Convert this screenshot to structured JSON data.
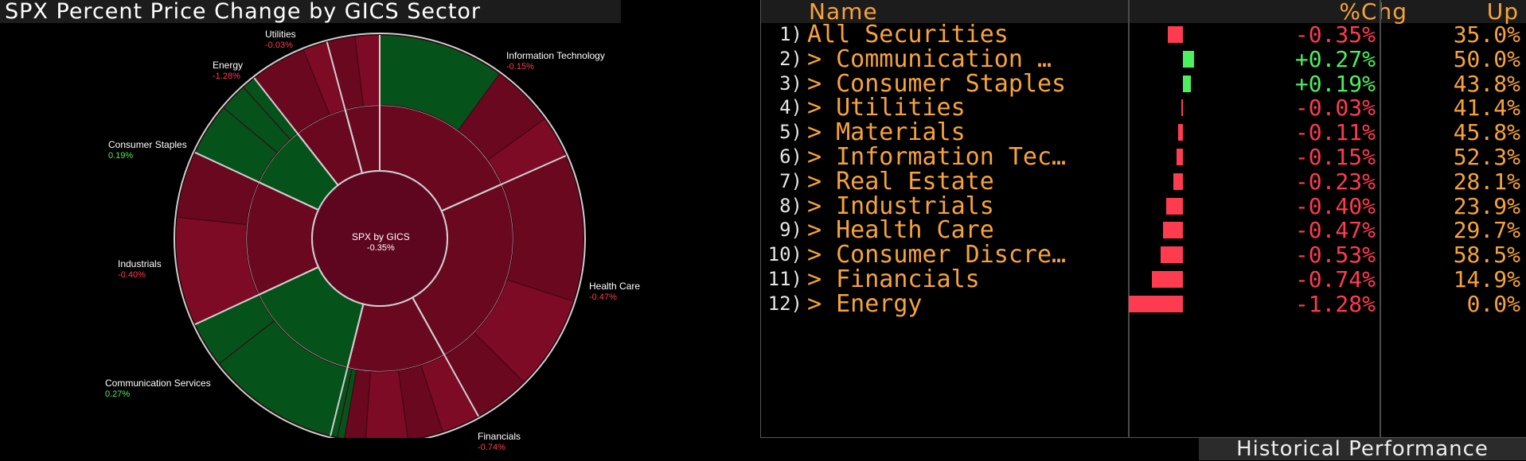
{
  "title": "SPX Percent Price Change by GICS Sector",
  "chart_data": {
    "type": "sunburst",
    "center": {
      "label": "SPX by GICS",
      "value": "-0.35%"
    },
    "sectors": [
      {
        "name": "Information Technology",
        "chg": -0.15,
        "chg_label": "-0.15%"
      },
      {
        "name": "Health Care",
        "chg": -0.47,
        "chg_label": "-0.47%"
      },
      {
        "name": "Financials",
        "chg": -0.74,
        "chg_label": "-0.74%"
      },
      {
        "name": "Communication Services",
        "chg": 0.27,
        "chg_label": "0.27%"
      },
      {
        "name": "Industrials",
        "chg": -0.4,
        "chg_label": "-0.40%"
      },
      {
        "name": "Consumer Staples",
        "chg": 0.19,
        "chg_label": "0.19%"
      },
      {
        "name": "Energy",
        "chg": -1.28,
        "chg_label": "-1.28%"
      },
      {
        "name": "Utilities",
        "chg": -0.03,
        "chg_label": "-0.03%"
      }
    ]
  },
  "table": {
    "headers": {
      "name": "Name",
      "chg": "%Chg",
      "up": "Up"
    },
    "rows": [
      {
        "idx": "1)",
        "name": "All Securities",
        "chg": -0.35,
        "chg_label": "-0.35%",
        "up": "35.0%"
      },
      {
        "idx": "2)",
        "name": "> Communication …",
        "chg": 0.27,
        "chg_label": "+0.27%",
        "up": "50.0%"
      },
      {
        "idx": "3)",
        "name": "> Consumer Staples",
        "chg": 0.19,
        "chg_label": "+0.19%",
        "up": "43.8%"
      },
      {
        "idx": "4)",
        "name": "> Utilities",
        "chg": -0.03,
        "chg_label": "-0.03%",
        "up": "41.4%"
      },
      {
        "idx": "5)",
        "name": "> Materials",
        "chg": -0.11,
        "chg_label": "-0.11%",
        "up": "45.8%"
      },
      {
        "idx": "6)",
        "name": "> Information Tec…",
        "chg": -0.15,
        "chg_label": "-0.15%",
        "up": "52.3%"
      },
      {
        "idx": "7)",
        "name": "> Real Estate",
        "chg": -0.23,
        "chg_label": "-0.23%",
        "up": "28.1%"
      },
      {
        "idx": "8)",
        "name": "> Industrials",
        "chg": -0.4,
        "chg_label": "-0.40%",
        "up": "23.9%"
      },
      {
        "idx": "9)",
        "name": "> Health Care",
        "chg": -0.47,
        "chg_label": "-0.47%",
        "up": "29.7%"
      },
      {
        "idx": "10)",
        "name": "> Consumer Discre…",
        "chg": -0.53,
        "chg_label": "-0.53%",
        "up": "58.5%"
      },
      {
        "idx": "11)",
        "name": "> Financials",
        "chg": -0.74,
        "chg_label": "-0.74%",
        "up": "14.9%"
      },
      {
        "idx": "12)",
        "name": "> Energy",
        "chg": -1.28,
        "chg_label": "-1.28%",
        "up": "0.0%"
      }
    ]
  },
  "historical_label": "Historical Performance",
  "colors": {
    "neg_text": "#ff3b50",
    "pos_text": "#4cf05e",
    "neg_bar": "#ff3b50",
    "pos_bar": "#4cf05e",
    "accent": "#f7a33a"
  }
}
